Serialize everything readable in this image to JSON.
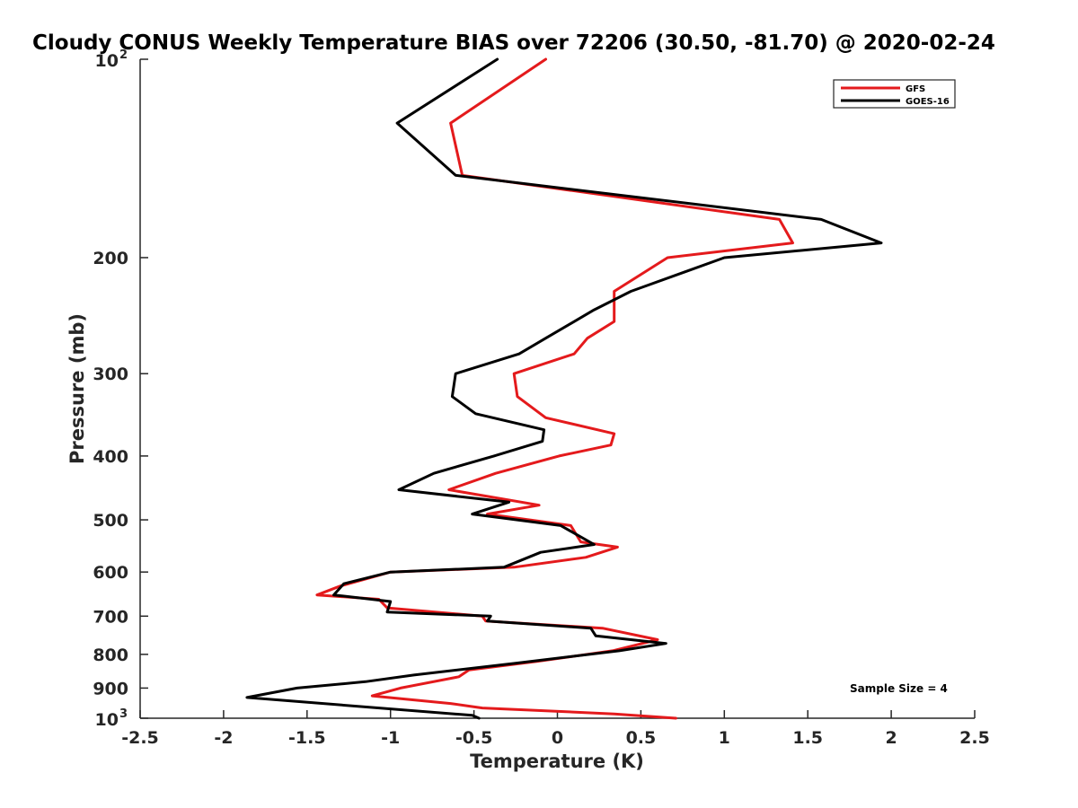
{
  "chart_data": {
    "type": "line",
    "title": "Cloudy CONUS Weekly Temperature BIAS over 72206 (30.50, -81.70) @ 2020-02-24",
    "xlabel": "Temperature (K)",
    "ylabel": "Pressure (mb)",
    "xlim": [
      -2.5,
      2.5
    ],
    "ylim": [
      100,
      1000
    ],
    "yscale": "log",
    "yreversed": true,
    "grid": false,
    "legend_position": "top-right",
    "x_ticks": [
      {
        "value": -2.5,
        "label": "-2.5"
      },
      {
        "value": -2,
        "label": "-2"
      },
      {
        "value": -1.5,
        "label": "-1.5"
      },
      {
        "value": -1,
        "label": "-1"
      },
      {
        "value": -0.5,
        "label": "-0.5"
      },
      {
        "value": 0,
        "label": "0"
      },
      {
        "value": 0.5,
        "label": "0.5"
      },
      {
        "value": 1,
        "label": "1"
      },
      {
        "value": 1.5,
        "label": "1.5"
      },
      {
        "value": 2,
        "label": "2"
      },
      {
        "value": 2.5,
        "label": "2.5"
      }
    ],
    "y_ticks": [
      {
        "value": 200,
        "label": "200"
      },
      {
        "value": 300,
        "label": "300"
      },
      {
        "value": 400,
        "label": "400"
      },
      {
        "value": 500,
        "label": "500"
      },
      {
        "value": 600,
        "label": "600"
      },
      {
        "value": 700,
        "label": "700"
      },
      {
        "value": 800,
        "label": "800"
      },
      {
        "value": 900,
        "label": "900"
      }
    ],
    "y_tick_top": {
      "value": 100,
      "base": "10",
      "exponent": "2"
    },
    "y_tick_bottom": {
      "value": 1000,
      "base": "10",
      "exponent": "3"
    },
    "annotation": "Sample Size = 4",
    "series": [
      {
        "name": "GFS",
        "color": "#e41a1c",
        "points": [
          [
            -0.07,
            100
          ],
          [
            -0.64,
            125
          ],
          [
            -0.57,
            150
          ],
          [
            1.33,
            175
          ],
          [
            1.41,
            190
          ],
          [
            0.66,
            200
          ],
          [
            0.34,
            225
          ],
          [
            0.34,
            250
          ],
          [
            0.18,
            265
          ],
          [
            0.1,
            280
          ],
          [
            -0.26,
            300
          ],
          [
            -0.24,
            325
          ],
          [
            -0.07,
            350
          ],
          [
            0.34,
            370
          ],
          [
            0.32,
            385
          ],
          [
            0.01,
            400
          ],
          [
            -0.37,
            425
          ],
          [
            -0.65,
            450
          ],
          [
            -0.11,
            475
          ],
          [
            -0.42,
            490
          ],
          [
            0.08,
            510
          ],
          [
            0.14,
            540
          ],
          [
            0.36,
            550
          ],
          [
            0.17,
            570
          ],
          [
            -0.26,
            590
          ],
          [
            -1.0,
            600
          ],
          [
            -1.3,
            630
          ],
          [
            -1.44,
            650
          ],
          [
            -1.07,
            660
          ],
          [
            -1.02,
            680
          ],
          [
            -0.45,
            700
          ],
          [
            -0.43,
            712
          ],
          [
            0.27,
            730
          ],
          [
            0.6,
            760
          ],
          [
            0.33,
            790
          ],
          [
            -0.12,
            820
          ],
          [
            -0.53,
            845
          ],
          [
            -0.59,
            865
          ],
          [
            -0.94,
            900
          ],
          [
            -1.11,
            925
          ],
          [
            -0.64,
            950
          ],
          [
            -0.45,
            965
          ],
          [
            0.34,
            985
          ],
          [
            0.71,
            1000
          ]
        ]
      },
      {
        "name": "GOES-16",
        "color": "#000000",
        "points": [
          [
            -0.36,
            100
          ],
          [
            -0.96,
            125
          ],
          [
            -0.61,
            150
          ],
          [
            1.58,
            175
          ],
          [
            1.94,
            190
          ],
          [
            1.0,
            200
          ],
          [
            0.44,
            225
          ],
          [
            0.22,
            240
          ],
          [
            -0.07,
            265
          ],
          [
            -0.23,
            280
          ],
          [
            -0.61,
            300
          ],
          [
            -0.63,
            325
          ],
          [
            -0.49,
            345
          ],
          [
            -0.08,
            365
          ],
          [
            -0.09,
            380
          ],
          [
            -0.38,
            400
          ],
          [
            -0.74,
            425
          ],
          [
            -0.95,
            450
          ],
          [
            -0.29,
            470
          ],
          [
            -0.51,
            490
          ],
          [
            0.02,
            510
          ],
          [
            0.22,
            545
          ],
          [
            -0.1,
            560
          ],
          [
            -0.32,
            590
          ],
          [
            -1.0,
            600
          ],
          [
            -1.28,
            625
          ],
          [
            -1.34,
            650
          ],
          [
            -1.0,
            665
          ],
          [
            -1.02,
            690
          ],
          [
            -0.4,
            700
          ],
          [
            -0.42,
            712
          ],
          [
            0.2,
            730
          ],
          [
            0.23,
            750
          ],
          [
            0.65,
            770
          ],
          [
            0.37,
            790
          ],
          [
            -0.25,
            825
          ],
          [
            -0.86,
            860
          ],
          [
            -1.15,
            880
          ],
          [
            -1.56,
            900
          ],
          [
            -1.86,
            930
          ],
          [
            -0.51,
            990
          ],
          [
            -0.47,
            1000
          ]
        ]
      }
    ]
  }
}
